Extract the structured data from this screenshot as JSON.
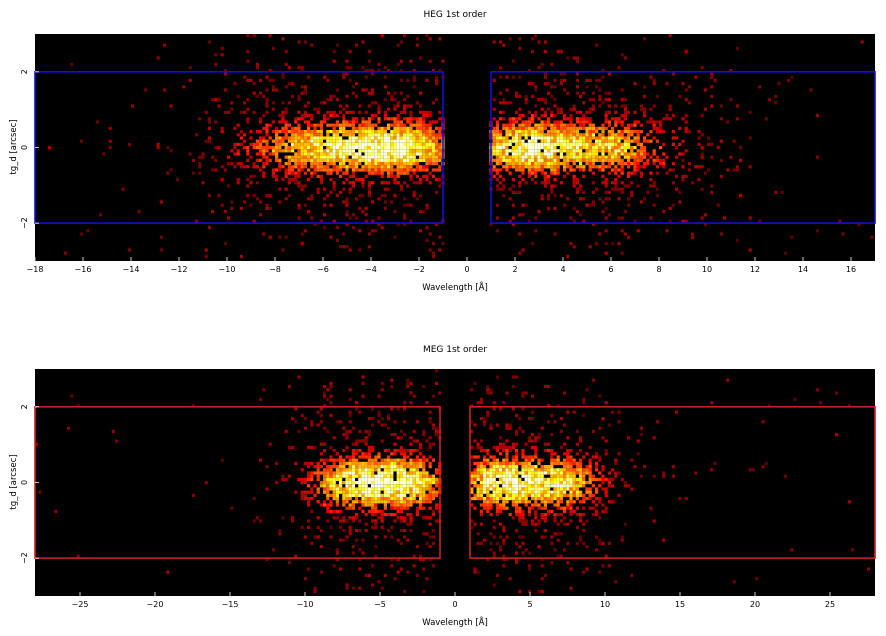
{
  "chart_data": [
    {
      "type": "heatmap",
      "title": "HEG 1st order",
      "xlabel": "Wavelength [Å]",
      "ylabel": "tg_d [arcsec]",
      "xlim": [
        -18,
        17
      ],
      "ylim": [
        -3,
        3
      ],
      "x_ticks": [
        -18,
        -16,
        -14,
        -12,
        -10,
        -8,
        -6,
        -4,
        -2,
        0,
        2,
        4,
        6,
        8,
        10,
        12,
        14,
        16
      ],
      "x_tick_labels": [
        "−18",
        "−16",
        "−14",
        "−12",
        "−10",
        "−8",
        "−6",
        "−4",
        "−2",
        "0",
        "2",
        "4",
        "6",
        "8",
        "10",
        "12",
        "14",
        "16"
      ],
      "y_ticks": [
        -2,
        0,
        2
      ],
      "y_tick_labels": [
        "−2",
        "0",
        "2"
      ],
      "grid": false,
      "background_color": "#000000",
      "colormap": "hot",
      "extraction_box_color": "#1010dd",
      "extraction_regions": [
        {
          "x": [
            -18,
            -1
          ],
          "y": [
            -2,
            2
          ]
        },
        {
          "x": [
            1,
            17
          ],
          "y": [
            -2,
            2
          ]
        }
      ],
      "clusters": [
        {
          "x_center": -3,
          "x_sigma": 1.7,
          "y_center": 0,
          "y_sigma": 0.45,
          "peak": 1.0
        },
        {
          "x_center": -6.5,
          "x_sigma": 1.8,
          "y_center": 0,
          "y_sigma": 0.45,
          "peak": 0.7
        },
        {
          "x_center": 2.5,
          "x_sigma": 1.5,
          "y_center": 0,
          "y_sigma": 0.45,
          "peak": 1.0
        },
        {
          "x_center": 6,
          "x_sigma": 1.6,
          "y_center": 0,
          "y_sigma": 0.45,
          "peak": 0.7
        }
      ],
      "no_data_gap": [
        -1,
        1
      ]
    },
    {
      "type": "heatmap",
      "title": "MEG 1st order",
      "xlabel": "Wavelength [Å]",
      "ylabel": "tg_d [arcsec]",
      "xlim": [
        -28,
        28
      ],
      "ylim": [
        -3,
        3
      ],
      "x_ticks": [
        -25,
        -20,
        -15,
        -10,
        -5,
        0,
        5,
        10,
        15,
        20,
        25
      ],
      "x_tick_labels": [
        "−25",
        "−20",
        "−15",
        "−10",
        "−5",
        "0",
        "5",
        "10",
        "15",
        "20",
        "25"
      ],
      "y_ticks": [
        -2,
        0,
        2
      ],
      "y_tick_labels": [
        "−2",
        "0",
        "2"
      ],
      "grid": false,
      "background_color": "#000000",
      "colormap": "hot",
      "extraction_box_color": "#cc1f1f",
      "extraction_regions": [
        {
          "x": [
            -28,
            -1
          ],
          "y": [
            -2,
            2
          ]
        },
        {
          "x": [
            1,
            28
          ],
          "y": [
            -2,
            2
          ]
        }
      ],
      "clusters": [
        {
          "x_center": -3.5,
          "x_sigma": 1.8,
          "y_center": 0,
          "y_sigma": 0.45,
          "peak": 1.0
        },
        {
          "x_center": -7,
          "x_sigma": 1.8,
          "y_center": 0,
          "y_sigma": 0.45,
          "peak": 0.85
        },
        {
          "x_center": 3,
          "x_sigma": 1.8,
          "y_center": 0,
          "y_sigma": 0.45,
          "peak": 1.0
        },
        {
          "x_center": 7,
          "x_sigma": 1.8,
          "y_center": 0,
          "y_sigma": 0.45,
          "peak": 0.85
        }
      ],
      "no_data_gap": [
        -1,
        1
      ]
    }
  ]
}
